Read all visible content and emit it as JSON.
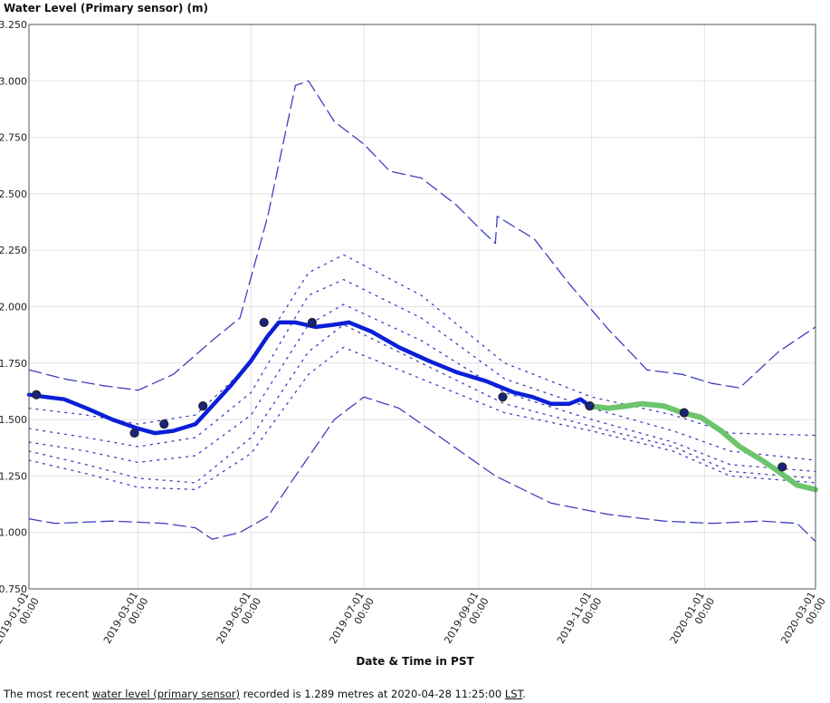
{
  "chart_data": {
    "type": "line",
    "title": "",
    "ylabel": "Water Level (Primary sensor) (m)",
    "xlabel": "Date & Time in PST",
    "ylim": [
      0.75,
      3.25
    ],
    "xlim": [
      "2019-01-01",
      "2020-03-01"
    ],
    "y_ticks": [
      "0.750",
      "1.000",
      "1.250",
      "1.500",
      "1.750",
      "2.000",
      "2.250",
      "2.500",
      "2.750",
      "3.000",
      "3.250"
    ],
    "x_ticks": [
      {
        "date": "2019-01-01",
        "label": "2019-01-01",
        "time": "00:00"
      },
      {
        "date": "2019-03-01",
        "label": "2019-03-01",
        "time": "00:00"
      },
      {
        "date": "2019-05-01",
        "label": "2019-05-01",
        "time": "00:00"
      },
      {
        "date": "2019-07-01",
        "label": "2019-07-01",
        "time": "00:00"
      },
      {
        "date": "2019-09-01",
        "label": "2019-09-01",
        "time": "00:00"
      },
      {
        "date": "2019-11-01",
        "label": "2019-11-01",
        "time": "00:00"
      },
      {
        "date": "2020-01-01",
        "label": "2020-01-01",
        "time": "00:00"
      },
      {
        "date": "2020-03-01",
        "label": "2020-03-01",
        "time": "00:00"
      }
    ],
    "grid": true,
    "colors": {
      "historical": "#0a1fd6",
      "current": "#6cc46c",
      "bands": "#3f3fc0",
      "points": "#1a237e"
    },
    "series": [
      {
        "style": "dashed",
        "x": [
          "2019-01-01",
          "2019-01-20",
          "2019-02-10",
          "2019-03-01",
          "2019-03-20",
          "2019-04-10",
          "2019-04-25",
          "2019-05-10",
          "2019-05-25",
          "2019-06-01",
          "2019-06-15",
          "2019-07-01",
          "2019-07-15",
          "2019-08-01",
          "2019-08-20",
          "2019-09-01",
          "2019-09-10",
          "2019-09-11",
          "2019-10-01",
          "2019-10-20",
          "2019-11-10",
          "2019-12-01",
          "2019-12-20",
          "2020-01-05",
          "2020-01-20",
          "2020-02-10",
          "2020-03-01"
        ],
        "y": [
          1.72,
          1.68,
          1.65,
          1.63,
          1.7,
          1.85,
          1.95,
          2.4,
          2.98,
          3.0,
          2.82,
          2.72,
          2.6,
          2.57,
          2.45,
          2.35,
          2.28,
          2.4,
          2.3,
          2.1,
          1.9,
          1.72,
          1.7,
          1.66,
          1.64,
          1.8,
          1.91
        ]
      },
      {
        "style": "dotted",
        "x": [
          "2019-01-01",
          "2019-02-01",
          "2019-03-01",
          "2019-04-01",
          "2019-05-01",
          "2019-06-01",
          "2019-06-20",
          "2019-08-01",
          "2019-09-15",
          "2019-11-01",
          "2019-12-15",
          "2020-01-15",
          "2020-03-01"
        ],
        "y": [
          1.55,
          1.52,
          1.48,
          1.52,
          1.75,
          2.15,
          2.23,
          2.05,
          1.75,
          1.6,
          1.52,
          1.44,
          1.43
        ]
      },
      {
        "style": "dotted",
        "x": [
          "2019-01-01",
          "2019-02-01",
          "2019-03-01",
          "2019-04-01",
          "2019-05-01",
          "2019-06-01",
          "2019-06-20",
          "2019-08-01",
          "2019-09-15",
          "2019-11-01",
          "2019-12-15",
          "2020-01-15",
          "2020-03-01"
        ],
        "y": [
          1.46,
          1.42,
          1.38,
          1.42,
          1.62,
          2.05,
          2.12,
          1.95,
          1.68,
          1.55,
          1.45,
          1.36,
          1.32
        ]
      },
      {
        "style": "dotted",
        "x": [
          "2019-01-01",
          "2019-02-01",
          "2019-03-01",
          "2019-04-01",
          "2019-05-01",
          "2019-06-01",
          "2019-06-20",
          "2019-08-01",
          "2019-09-15",
          "2019-11-01",
          "2019-12-15",
          "2020-01-15",
          "2020-03-01"
        ],
        "y": [
          1.4,
          1.36,
          1.31,
          1.34,
          1.52,
          1.92,
          2.01,
          1.85,
          1.62,
          1.5,
          1.4,
          1.3,
          1.27
        ]
      },
      {
        "style": "dotted",
        "x": [
          "2019-01-01",
          "2019-02-01",
          "2019-03-01",
          "2019-04-01",
          "2019-05-01",
          "2019-06-01",
          "2019-06-20",
          "2019-08-01",
          "2019-09-15",
          "2019-11-01",
          "2019-12-15",
          "2020-01-15",
          "2020-03-01"
        ],
        "y": [
          1.36,
          1.3,
          1.24,
          1.22,
          1.42,
          1.8,
          1.92,
          1.75,
          1.57,
          1.47,
          1.38,
          1.27,
          1.24
        ]
      },
      {
        "style": "dotted",
        "x": [
          "2019-01-01",
          "2019-02-01",
          "2019-03-01",
          "2019-04-01",
          "2019-05-01",
          "2019-06-01",
          "2019-06-20",
          "2019-08-01",
          "2019-09-15",
          "2019-11-01",
          "2019-12-15",
          "2020-01-15",
          "2020-03-01"
        ],
        "y": [
          1.32,
          1.26,
          1.2,
          1.19,
          1.35,
          1.7,
          1.82,
          1.68,
          1.53,
          1.45,
          1.36,
          1.25,
          1.22
        ]
      },
      {
        "style": "dashed",
        "x": [
          "2019-01-01",
          "2019-01-15",
          "2019-02-15",
          "2019-03-15",
          "2019-04-01",
          "2019-04-10",
          "2019-04-25",
          "2019-05-10",
          "2019-05-25",
          "2019-06-15",
          "2019-07-01",
          "2019-07-20",
          "2019-08-15",
          "2019-09-10",
          "2019-10-10",
          "2019-11-10",
          "2019-12-10",
          "2020-01-05",
          "2020-02-01",
          "2020-02-20",
          "2020-03-01"
        ],
        "y": [
          1.06,
          1.04,
          1.05,
          1.04,
          1.02,
          0.97,
          1.0,
          1.07,
          1.25,
          1.5,
          1.6,
          1.55,
          1.4,
          1.25,
          1.13,
          1.08,
          1.05,
          1.04,
          1.05,
          1.04,
          0.96
        ]
      },
      {
        "style": "solid-thick",
        "name": "",
        "x": [
          "2019-01-01",
          "2019-01-10",
          "2019-01-20",
          "2019-02-01",
          "2019-02-15",
          "2019-03-01",
          "2019-03-10",
          "2019-03-20",
          "2019-04-01",
          "2019-04-10",
          "2019-04-20",
          "2019-05-01",
          "2019-05-10",
          "2019-05-16",
          "2019-05-25",
          "2019-06-05",
          "2019-06-15",
          "2019-06-23",
          "2019-07-05",
          "2019-07-20",
          "2019-08-05",
          "2019-08-20",
          "2019-09-05",
          "2019-09-20",
          "2019-09-30",
          "2019-10-10",
          "2019-10-20",
          "2019-10-26",
          "2019-10-31"
        ],
        "y": [
          1.61,
          1.6,
          1.59,
          1.55,
          1.5,
          1.46,
          1.44,
          1.45,
          1.48,
          1.56,
          1.65,
          1.76,
          1.87,
          1.93,
          1.93,
          1.91,
          1.92,
          1.93,
          1.89,
          1.82,
          1.76,
          1.71,
          1.67,
          1.62,
          1.6,
          1.57,
          1.57,
          1.59,
          1.56
        ]
      },
      {
        "style": "solid-thick-green",
        "x": [
          "2019-10-31",
          "2019-11-10",
          "2019-11-20",
          "2019-11-28",
          "2019-12-10",
          "2019-12-20",
          "2019-12-30",
          "2020-01-10",
          "2020-01-20",
          "2020-02-01",
          "2020-02-10",
          "2020-02-20",
          "2020-03-01"
        ],
        "y": [
          1.56,
          1.55,
          1.56,
          1.57,
          1.56,
          1.53,
          1.51,
          1.45,
          1.38,
          1.32,
          1.27,
          1.21,
          1.19
        ]
      },
      {
        "style": "points",
        "x": [
          "2019-01-05",
          "2019-02-27",
          "2019-03-15",
          "2019-04-05",
          "2019-05-08",
          "2019-06-03",
          "2019-09-14",
          "2019-10-31",
          "2019-12-21",
          "2020-02-12"
        ],
        "y": [
          1.61,
          1.44,
          1.48,
          1.56,
          1.93,
          1.93,
          1.6,
          1.56,
          1.53,
          1.29
        ]
      }
    ]
  },
  "footnote": {
    "prefix": "The most recent ",
    "link_text": "water level (primary sensor)",
    "middle": " recorded is 1.289 metres at 2020-04-28 11:25:00 ",
    "tz": "LST",
    "suffix": "."
  }
}
